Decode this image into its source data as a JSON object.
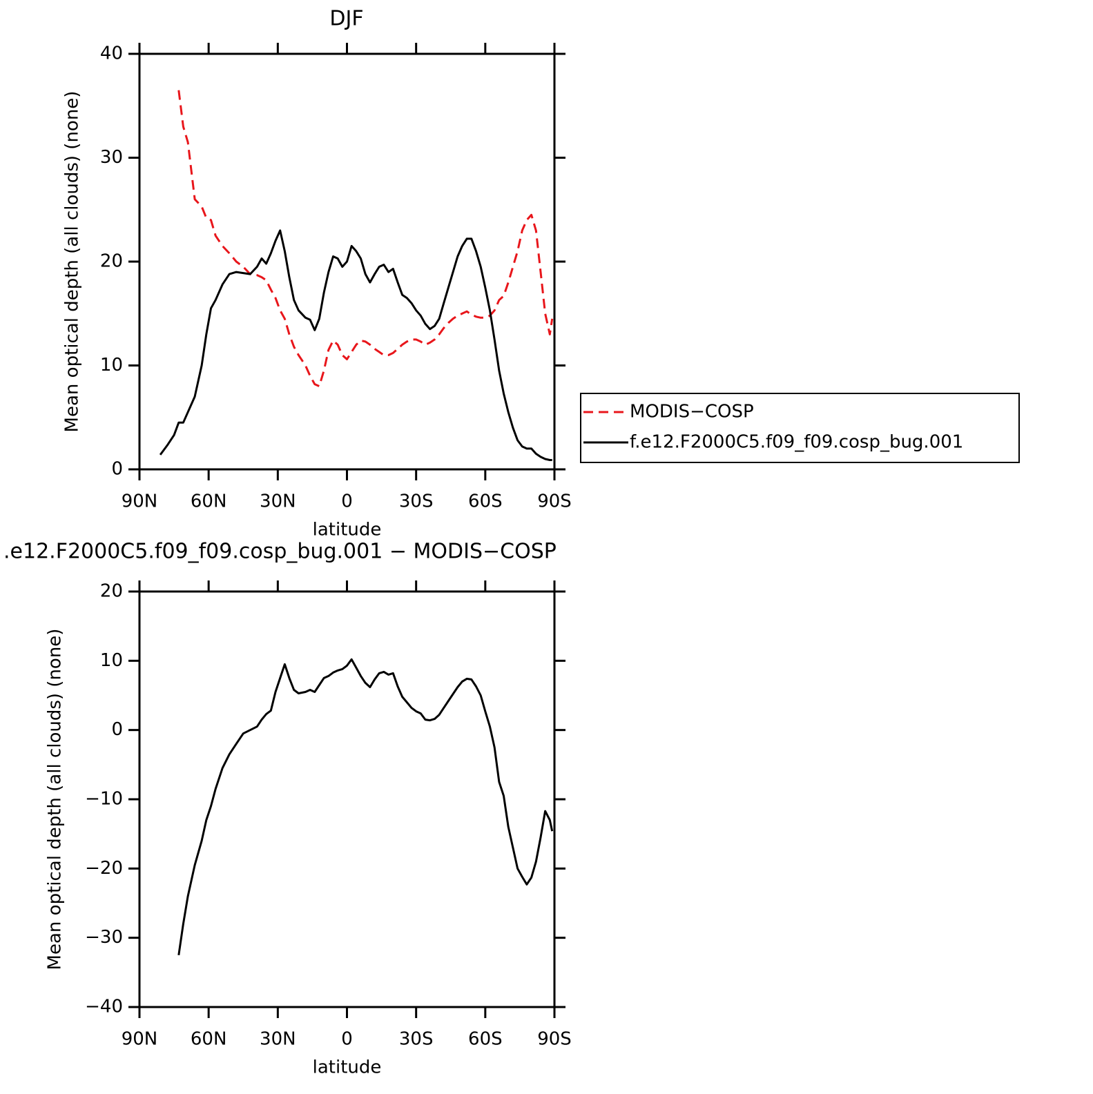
{
  "chart_data": [
    {
      "type": "line",
      "title": "DJF",
      "xlabel": "latitude",
      "ylabel": "Mean optical depth (all clouds) (none)",
      "xlim": [
        90,
        -90
      ],
      "xticks": [
        {
          "value": 90,
          "label": "90N"
        },
        {
          "value": 60,
          "label": "60N"
        },
        {
          "value": 30,
          "label": "30N"
        },
        0,
        {
          "value": -30,
          "label": "30S"
        },
        {
          "value": -60,
          "label": "60S"
        },
        {
          "value": -90,
          "label": "90S"
        }
      ],
      "ylim": [
        0,
        40
      ],
      "yticks": [
        0,
        10,
        20,
        30,
        40
      ],
      "legend": "right",
      "x": [
        81,
        78,
        75,
        73,
        71,
        69,
        66,
        63,
        61,
        59,
        57,
        54,
        51,
        48,
        45,
        42,
        39,
        37,
        35,
        33,
        31,
        29,
        27,
        25,
        23,
        21,
        18,
        16,
        14,
        12,
        10,
        8,
        6,
        4,
        2,
        0,
        -2,
        -4,
        -6,
        -8,
        -10,
        -12,
        -14,
        -16,
        -18,
        -20,
        -22,
        -24,
        -26,
        -28,
        -30,
        -32,
        -34,
        -36,
        -38,
        -40,
        -42,
        -44,
        -46,
        -48,
        -50,
        -52,
        -54,
        -56,
        -58,
        -60,
        -62,
        -64,
        -66,
        -68,
        -70,
        -72,
        -74,
        -76,
        -78,
        -80,
        -82,
        -84,
        -86,
        -88,
        -89
      ],
      "series": [
        {
          "name": "MODIS−COSP",
          "color": "#e8161b",
          "line_style": "dashed",
          "values": [
            null,
            null,
            null,
            36.5,
            33,
            31.5,
            26,
            25.3,
            24.2,
            24,
            22.5,
            21.5,
            20.8,
            20,
            19.5,
            18.8,
            18.7,
            18.5,
            18.2,
            17.3,
            16.5,
            15.3,
            14.5,
            13,
            11.8,
            11,
            10,
            9,
            8.2,
            8,
            9.5,
            11.5,
            12.4,
            12,
            11,
            10.6,
            11.3,
            12,
            12.4,
            12.3,
            12,
            11.6,
            11.3,
            11,
            11,
            11.2,
            11.6,
            12,
            12.3,
            12.5,
            12.5,
            12.3,
            12,
            12.2,
            12.5,
            13,
            13.6,
            14.1,
            14.5,
            14.8,
            15,
            15.2,
            14.9,
            14.7,
            14.6,
            14.6,
            14.8,
            15.3,
            16.3,
            16.7,
            18,
            19.5,
            21,
            23,
            24,
            24.5,
            23,
            19,
            15,
            13,
            14.5
          ]
        },
        {
          "name": "f.e12.F2000C5.f09_f09.cosp_bug.001",
          "color": "#000000",
          "line_style": "solid",
          "values": [
            1.4,
            2.3,
            3.3,
            4.5,
            4.5,
            5.5,
            7,
            10,
            13,
            15.5,
            16.3,
            17.8,
            18.8,
            19,
            18.9,
            18.8,
            19.5,
            20.3,
            19.8,
            20.8,
            22,
            23,
            21,
            18.5,
            16.3,
            15.3,
            14.6,
            14.4,
            13.4,
            14.5,
            17,
            19,
            20.5,
            20.3,
            19.5,
            20,
            21.5,
            21,
            20.3,
            18.8,
            18,
            18.8,
            19.5,
            19.7,
            19,
            19.3,
            18,
            16.8,
            16.5,
            16,
            15.3,
            14.8,
            14,
            13.5,
            13.8,
            14.5,
            16,
            17.5,
            19,
            20.5,
            21.5,
            22.2,
            22.2,
            21,
            19.5,
            17.5,
            15.3,
            12.5,
            9.5,
            7.3,
            5.5,
            4,
            2.8,
            2.2,
            2,
            2,
            1.5,
            1.2,
            1,
            0.9,
            0.9
          ]
        }
      ]
    },
    {
      "type": "line",
      "title": ".e12.F2000C5.f09_f09.cosp_bug.001 − MODIS−COSP",
      "xlabel": "latitude",
      "ylabel": "Mean optical depth (all clouds) (none)",
      "xlim": [
        90,
        -90
      ],
      "xticks": [
        {
          "value": 90,
          "label": "90N"
        },
        {
          "value": 60,
          "label": "60N"
        },
        {
          "value": 30,
          "label": "30N"
        },
        0,
        {
          "value": -30,
          "label": "30S"
        },
        {
          "value": -60,
          "label": "60S"
        },
        {
          "value": -90,
          "label": "90S"
        }
      ],
      "ylim": [
        -40,
        20
      ],
      "yticks": [
        {
          "value": -40,
          "label": "−40"
        },
        {
          "value": -30,
          "label": "−30"
        },
        {
          "value": -20,
          "label": "−20"
        },
        {
          "value": -10,
          "label": "−10"
        },
        0,
        10,
        20
      ],
      "color": "#000000",
      "x": [
        73,
        71,
        69,
        66,
        63,
        61,
        59,
        57,
        54,
        51,
        48,
        45,
        42,
        39,
        37,
        35,
        33,
        31,
        29,
        27,
        25,
        23,
        21,
        18,
        16,
        14,
        12,
        10,
        8,
        6,
        4,
        2,
        0,
        -2,
        -4,
        -6,
        -8,
        -10,
        -12,
        -14,
        -16,
        -18,
        -20,
        -22,
        -24,
        -26,
        -28,
        -30,
        -32,
        -34,
        -36,
        -38,
        -40,
        -42,
        -44,
        -46,
        -48,
        -50,
        -52,
        -54,
        -56,
        -58,
        -60,
        -62,
        -64,
        -66,
        -68,
        -70,
        -72,
        -74,
        -76,
        -78,
        -80,
        -82,
        -84,
        -86,
        -88,
        -89
      ],
      "values": [
        -32.5,
        -28,
        -24,
        -19.5,
        -16,
        -13,
        -11,
        -8.5,
        -5.5,
        -3.5,
        -2,
        -0.5,
        0,
        0.5,
        1.5,
        2.3,
        2.8,
        5.5,
        7.5,
        9.5,
        7.5,
        5.8,
        5.3,
        5.5,
        5.8,
        5.5,
        6.5,
        7.5,
        7.8,
        8.3,
        8.6,
        8.8,
        9.3,
        10.2,
        9,
        7.8,
        6.8,
        6.2,
        7.3,
        8.2,
        8.4,
        8,
        8.2,
        6.3,
        4.8,
        4,
        3.2,
        2.7,
        2.4,
        1.5,
        1.4,
        1.6,
        2.2,
        3.2,
        4.2,
        5.2,
        6.2,
        7,
        7.4,
        7.3,
        6.3,
        5,
        2.7,
        0.5,
        -2.5,
        -7.5,
        -9.5,
        -14,
        -17,
        -20,
        -21.2,
        -22.3,
        -21.3,
        -19,
        -15.5,
        -11.7,
        -13,
        -14.6
      ]
    }
  ]
}
